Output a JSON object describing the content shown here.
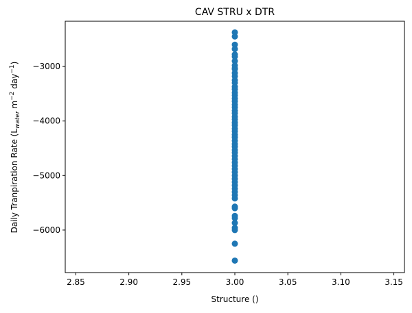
{
  "chart_data": {
    "type": "scatter",
    "title": "CAV STRU x DTR",
    "xlabel": "Structure ()",
    "ylabel": {
      "prefix": "Daily Tranpiration Rate (L",
      "sub": "water",
      "mid": " m",
      "sup1": "−2",
      "mid2": " day",
      "sup2": "−1",
      "suffix": ")"
    },
    "xlim": [
      2.84,
      3.16
    ],
    "ylim": [
      -6780,
      -2170
    ],
    "x_ticks": [
      2.85,
      2.9,
      2.95,
      3.0,
      3.05,
      3.1,
      3.15
    ],
    "x_tick_labels": [
      "2.85",
      "2.90",
      "2.95",
      "3.00",
      "3.05",
      "3.10",
      "3.15"
    ],
    "y_ticks": [
      -3000,
      -4000,
      -5000,
      -6000
    ],
    "y_tick_labels": [
      "−3000",
      "−4000",
      "−5000",
      "−6000"
    ],
    "marker_color": "#1f77b4",
    "grid": false,
    "series": [
      {
        "x": [
          3.0,
          3.0,
          3.0,
          3.0,
          3.0,
          3.0,
          3.0,
          3.0,
          3.0,
          3.0,
          3.0,
          3.0,
          3.0,
          3.0,
          3.0,
          3.0,
          3.0,
          3.0,
          3.0,
          3.0,
          3.0,
          3.0,
          3.0,
          3.0,
          3.0,
          3.0,
          3.0,
          3.0,
          3.0,
          3.0,
          3.0,
          3.0,
          3.0,
          3.0,
          3.0,
          3.0,
          3.0,
          3.0,
          3.0,
          3.0,
          3.0,
          3.0,
          3.0,
          3.0,
          3.0,
          3.0,
          3.0,
          3.0,
          3.0,
          3.0,
          3.0,
          3.0,
          3.0,
          3.0,
          3.0,
          3.0,
          3.0,
          3.0,
          3.0,
          3.0
        ],
        "y": [
          -2375,
          -2450,
          -2600,
          -2680,
          -2780,
          -2820,
          -2900,
          -2980,
          -3050,
          -3120,
          -3180,
          -3250,
          -3300,
          -3370,
          -3420,
          -3480,
          -3530,
          -3590,
          -3640,
          -3700,
          -3750,
          -3810,
          -3860,
          -3920,
          -3970,
          -4030,
          -4080,
          -4140,
          -4190,
          -4250,
          -4300,
          -4360,
          -4420,
          -4470,
          -4530,
          -4580,
          -4640,
          -4700,
          -4760,
          -4820,
          -4880,
          -4940,
          -5000,
          -5060,
          -5120,
          -5180,
          -5240,
          -5300,
          -5360,
          -5420,
          -5570,
          -5600,
          -5740,
          -5780,
          -5870,
          -5960,
          -6000,
          -6250,
          -6560,
          -3030
        ]
      }
    ]
  }
}
